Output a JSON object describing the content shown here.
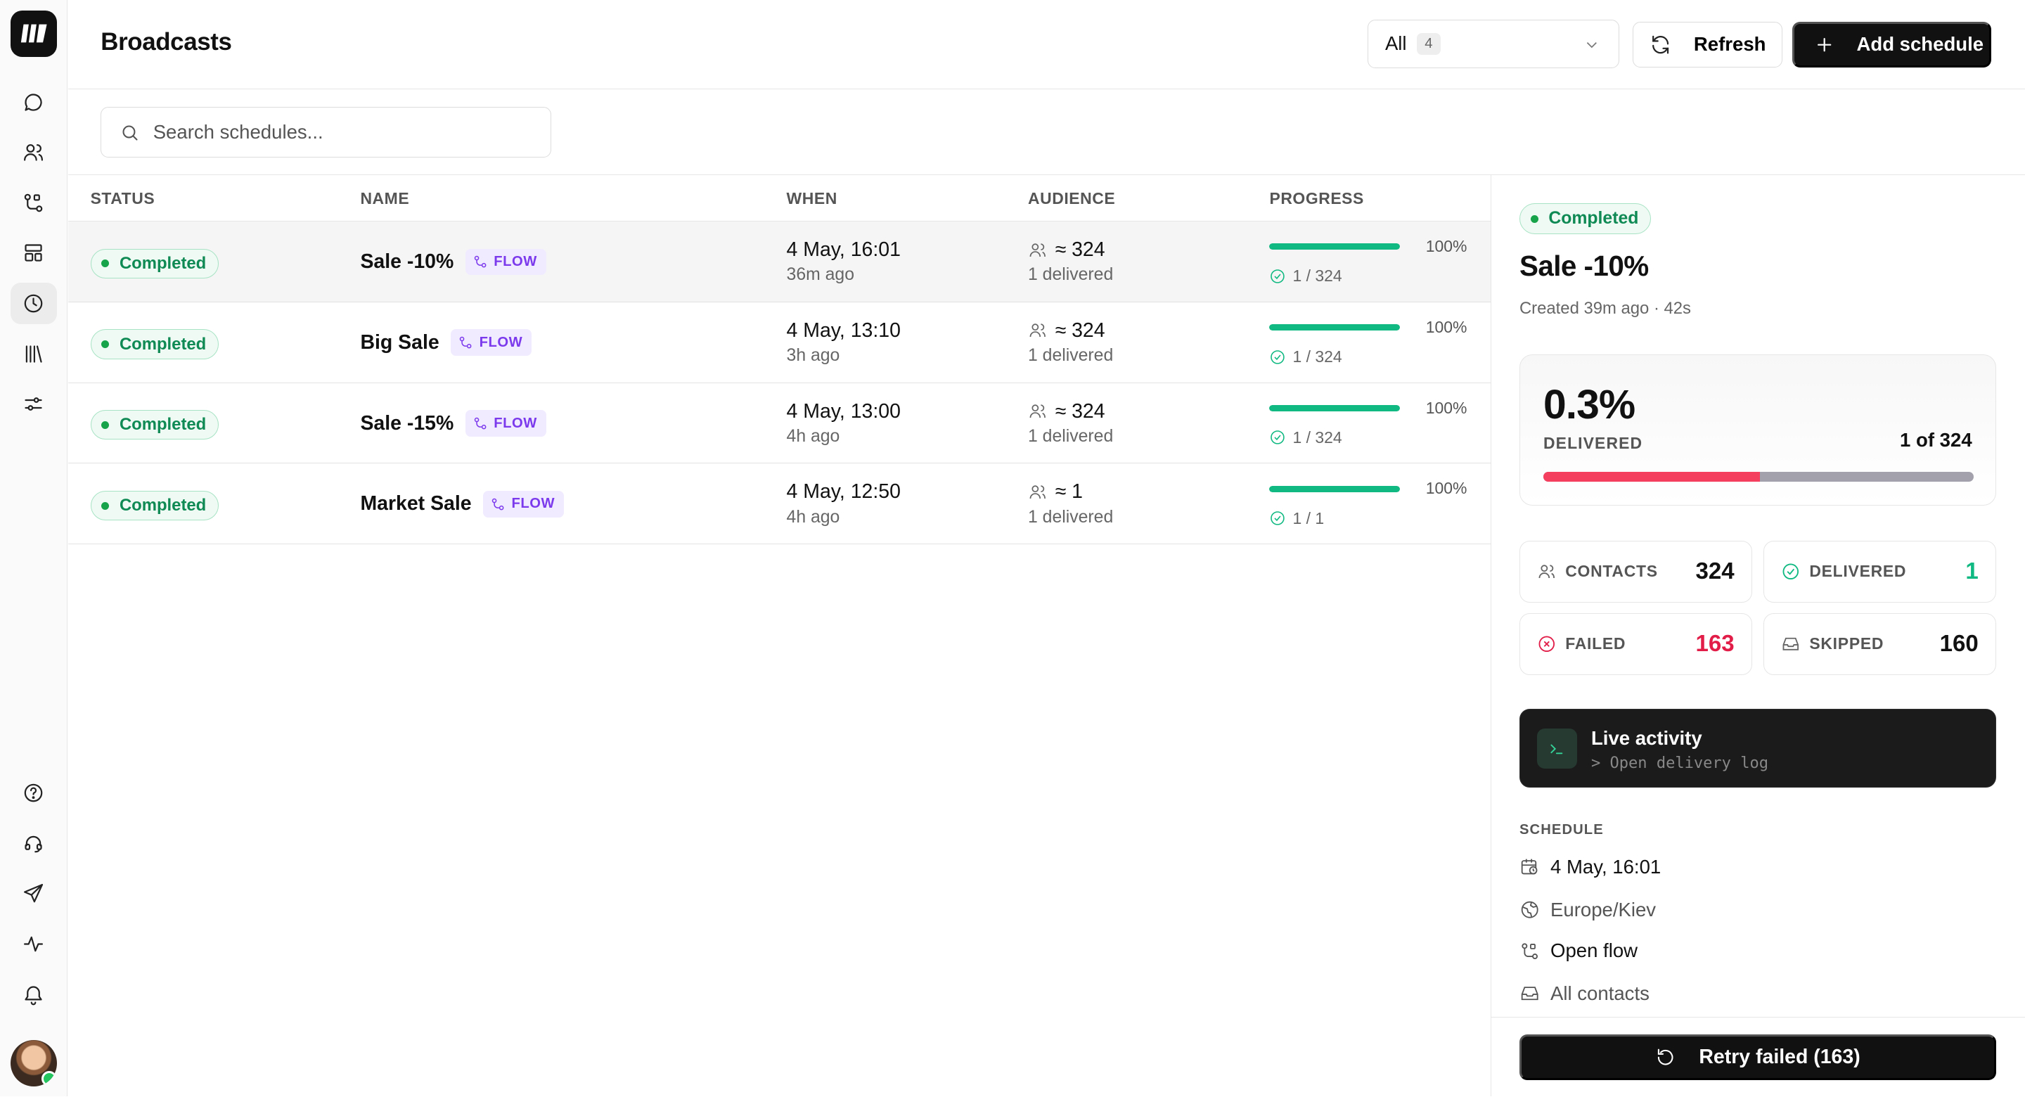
{
  "header": {
    "title": "Broadcasts",
    "filter": {
      "value": "All",
      "count": "4"
    },
    "refresh_label": "Refresh",
    "add_label": "Add schedule"
  },
  "search": {
    "placeholder": "Search schedules..."
  },
  "sidebar": {
    "logo": "logo-icon",
    "top_items": [
      "chat-icon",
      "contacts-icon",
      "flows-icon",
      "templates-icon",
      "schedules-icon",
      "library-icon",
      "settings-sliders-icon"
    ],
    "active_item": "schedules-icon",
    "bottom_items": [
      "help-icon",
      "support-headset-icon",
      "send-icon",
      "activity-icon",
      "bell-icon"
    ]
  },
  "table": {
    "columns": [
      "STATUS",
      "NAME",
      "WHEN",
      "AUDIENCE",
      "PROGRESS"
    ],
    "rows": [
      {
        "status": "Completed",
        "name": "Sale -10%",
        "tag": "FLOW",
        "when": "4 May, 16:01",
        "ago": "36m ago",
        "audience": "≈ 324",
        "delivered": "1 delivered",
        "progress": 1.0,
        "pct": "100%",
        "count": "1 / 324"
      },
      {
        "status": "Completed",
        "name": "Big Sale",
        "tag": "FLOW",
        "when": "4 May, 13:10",
        "ago": "3h ago",
        "audience": "≈ 324",
        "delivered": "1 delivered",
        "progress": 1.0,
        "pct": "100%",
        "count": "1 / 324"
      },
      {
        "status": "Completed",
        "name": "Sale -15%",
        "tag": "FLOW",
        "when": "4 May, 13:00",
        "ago": "4h ago",
        "audience": "≈ 324",
        "delivered": "1 delivered",
        "progress": 1.0,
        "pct": "100%",
        "count": "1 / 324"
      },
      {
        "status": "Completed",
        "name": "Market Sale",
        "tag": "FLOW",
        "when": "4 May, 12:50",
        "ago": "4h ago",
        "audience": "≈ 1",
        "delivered": "1 delivered",
        "progress": 1.0,
        "pct": "100%",
        "count": "1 / 1"
      }
    ]
  },
  "detail": {
    "status": "Completed",
    "title": "Sale -10%",
    "created": "Created 39m ago · 42s",
    "delivered_pct": "0.3%",
    "delivered_label": "DELIVERED",
    "of_text": "1 of 324",
    "failed_fraction": 0.503,
    "stats": [
      {
        "label": "CONTACTS",
        "value": "324",
        "icon": "contacts-icon",
        "color": "#111111"
      },
      {
        "label": "DELIVERED",
        "value": "1",
        "icon": "check-circle-icon",
        "color": "#10b981"
      },
      {
        "label": "FAILED",
        "value": "163",
        "icon": "x-circle-icon",
        "color": "#e11d48"
      },
      {
        "label": "SKIPPED",
        "value": "160",
        "icon": "inbox-icon",
        "color": "#111111"
      }
    ],
    "live": {
      "title": "Live activity",
      "subtitle": "> Open delivery log"
    },
    "schedule_heading": "SCHEDULE",
    "schedule": [
      {
        "icon": "calendar-clock-icon",
        "text": "4 May, 16:01"
      },
      {
        "icon": "globe-icon",
        "text": "Europe/Kiev"
      },
      {
        "icon": "flows-icon",
        "text": "Open flow"
      },
      {
        "icon": "inbox-icon",
        "text": "All contacts"
      }
    ],
    "retry_label": "Retry failed (163)"
  },
  "colors": {
    "success": "#10b981",
    "failed": "#f43f5e",
    "flow": "#7c3aed",
    "primary": "#111111"
  }
}
